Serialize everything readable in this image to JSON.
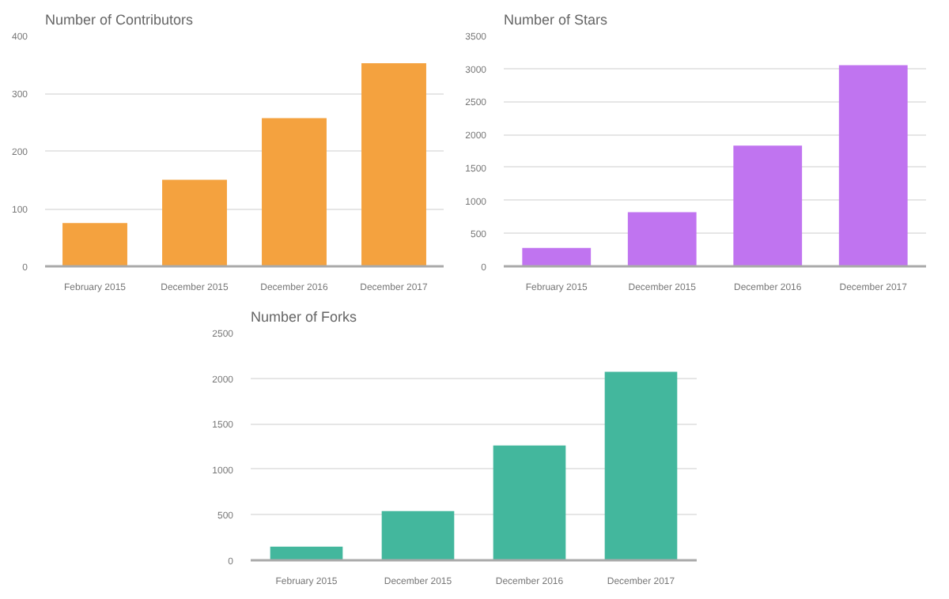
{
  "chart_data": [
    {
      "type": "bar",
      "title": "Number of Contributors",
      "categories": [
        "February 2015",
        "December 2015",
        "December 2016",
        "December 2017"
      ],
      "values": [
        75,
        150,
        257,
        352
      ],
      "color": "#f4a23f",
      "ylim": [
        0,
        400
      ],
      "yticks": [
        0,
        100,
        200,
        300,
        400
      ],
      "grid": "y"
    },
    {
      "type": "bar",
      "title": "Number of Stars",
      "categories": [
        "February 2015",
        "December 2015",
        "December 2016",
        "December 2017"
      ],
      "values": [
        280,
        820,
        1830,
        3050
      ],
      "color": "#c074f0",
      "ylim": [
        0,
        3500
      ],
      "yticks": [
        0,
        500,
        1000,
        1500,
        2000,
        2500,
        3000,
        3500
      ],
      "grid": "y"
    },
    {
      "type": "bar",
      "title": "Number of Forks",
      "categories": [
        "February 2015",
        "December 2015",
        "December 2016",
        "December 2017"
      ],
      "values": [
        150,
        540,
        1260,
        2070
      ],
      "color": "#43b79d",
      "ylim": [
        0,
        2500
      ],
      "yticks": [
        0,
        500,
        1000,
        1500,
        2000,
        2500
      ],
      "grid": "y"
    }
  ]
}
